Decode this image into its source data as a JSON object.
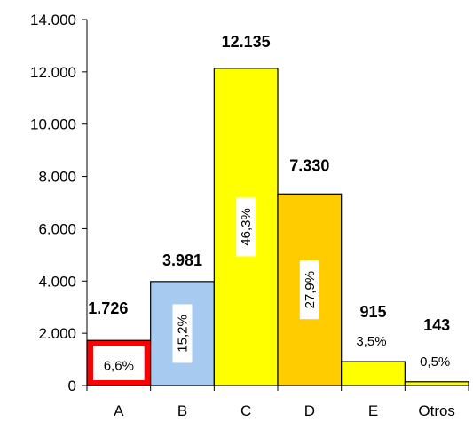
{
  "chart_data": {
    "type": "bar",
    "title": "",
    "xlabel": "",
    "ylabel": "",
    "ylim": [
      0,
      14000
    ],
    "yticks": [
      0,
      2000,
      4000,
      6000,
      8000,
      10000,
      12000,
      14000
    ],
    "ytick_labels": [
      "0",
      "2.000",
      "4.000",
      "6.000",
      "8.000",
      "10.000",
      "12.000",
      "14.000"
    ],
    "grid": false,
    "legend": "none",
    "categories": [
      "A",
      "B",
      "C",
      "D",
      "E",
      "Otros"
    ],
    "values": [
      1726,
      3981,
      12135,
      7330,
      915,
      143
    ],
    "value_labels": [
      "1.726",
      "3.981",
      "12.135",
      "7.330",
      "915",
      "143"
    ],
    "percent_labels": [
      "6,6%",
      "15,2%",
      "46,3%",
      "27,9%",
      "3,5%",
      "0,5%"
    ],
    "colors": [
      "#ff0000",
      "#a6caf0",
      "#ffff00",
      "#ffcc00",
      "#ffff00",
      "#ffff00"
    ]
  }
}
